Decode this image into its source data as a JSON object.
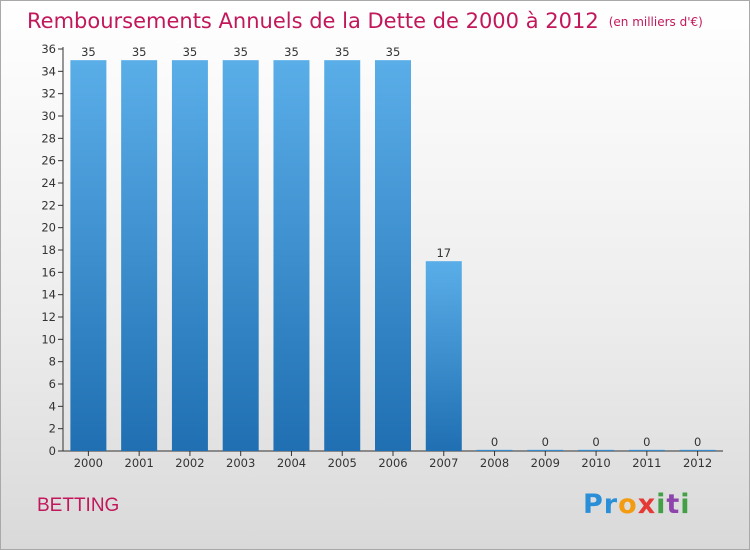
{
  "title": "Remboursements Annuels de la Dette de 2000 à 2012",
  "unit": "(en milliers d'€)",
  "commune": "BETTING",
  "logo_text": "Proxiti",
  "colors": {
    "title": "#c2185b",
    "bar_top": "#5aaee8",
    "bar_bottom": "#1f6fb2"
  },
  "chart_data": {
    "type": "bar",
    "title": "Remboursements Annuels de la Dette de 2000 à 2012",
    "xlabel": "",
    "ylabel": "",
    "categories": [
      "2000",
      "2001",
      "2002",
      "2003",
      "2004",
      "2005",
      "2006",
      "2007",
      "2008",
      "2009",
      "2010",
      "2011",
      "2012"
    ],
    "values": [
      35,
      35,
      35,
      35,
      35,
      35,
      35,
      17,
      0,
      0,
      0,
      0,
      0
    ],
    "ylim": [
      0,
      36
    ],
    "yticks": [
      0,
      2,
      4,
      6,
      8,
      10,
      12,
      14,
      16,
      18,
      20,
      22,
      24,
      26,
      28,
      30,
      32,
      34,
      36
    ],
    "grid": false,
    "data_labels": true
  }
}
